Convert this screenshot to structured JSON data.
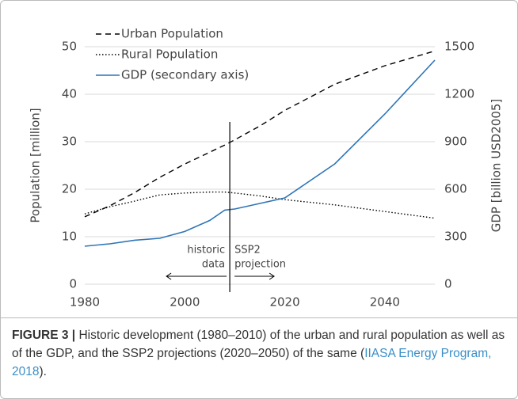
{
  "chart_data": {
    "type": "line",
    "x": [
      1980,
      1985,
      1990,
      1995,
      2000,
      2005,
      2008,
      2010,
      2015,
      2020,
      2030,
      2040,
      2050
    ],
    "xlim": [
      1980,
      2050
    ],
    "xticks": [
      1980,
      2000,
      2020,
      2040
    ],
    "ylim": [
      0,
      50
    ],
    "yticks": [
      0,
      10,
      20,
      30,
      40,
      50
    ],
    "y2lim": [
      0,
      1500
    ],
    "y2ticks": [
      0,
      300,
      600,
      900,
      1200,
      1500
    ],
    "ylabel": "Population [million]",
    "y2label": "GDP [billion USD2005]",
    "grid": true,
    "legend": "upper left",
    "series": [
      {
        "name": "Urban Population",
        "color": "#000000",
        "dash": "dashed",
        "values": [
          14.2,
          16.5,
          19.3,
          22.5,
          25.3,
          27.8,
          29.3,
          30.4,
          33.3,
          36.6,
          42.1,
          46.0,
          49.1
        ]
      },
      {
        "name": "Rural Population",
        "color": "#000000",
        "dash": "dotted",
        "values": [
          14.8,
          16.3,
          17.5,
          18.8,
          19.2,
          19.4,
          19.4,
          19.2,
          18.6,
          17.8,
          16.7,
          15.3,
          13.9
        ]
      },
      {
        "name": "GDP (secondary axis)",
        "color": "#2e75b6",
        "dash": "solid",
        "axis": "y2",
        "values": [
          240,
          255,
          278,
          290,
          333,
          403,
          468,
          475,
          510,
          545,
          760,
          1075,
          1415
        ]
      }
    ],
    "annotation": {
      "x": 2009,
      "left": [
        "historic",
        "data"
      ],
      "right": [
        "SSP2",
        "projection"
      ]
    }
  },
  "caption": {
    "label": "FIGURE 3 |",
    "text": " Historic development (1980–2010) of the urban and rural population as well as of the GDP, and the SSP2 projections (2020–2050) of the same (",
    "link": "IIASA Energy Program, 2018",
    "tail": ")."
  }
}
